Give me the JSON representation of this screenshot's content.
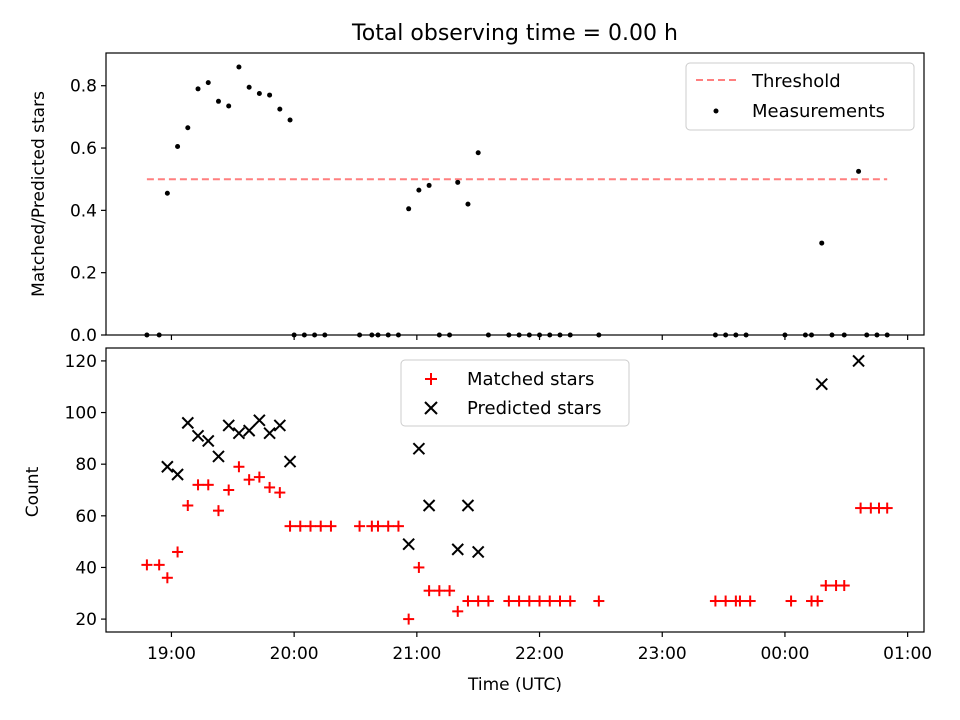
{
  "chart_data": [
    {
      "type": "scatter",
      "title": "Total observing time = 0.00 h",
      "xlabel": "",
      "ylabel": "Matched/Predicted stars",
      "xlim": [
        "18:28",
        "01:08"
      ],
      "ylim": [
        0,
        0.905
      ],
      "x_ticks": [
        "19:00",
        "20:00",
        "21:00",
        "22:00",
        "23:00",
        "00:00",
        "01:00"
      ],
      "y_ticks": [
        "0.0",
        "0.2",
        "0.4",
        "0.6",
        "0.8"
      ],
      "legend": {
        "position": "top-right",
        "entries": [
          "Threshold",
          "Measurements"
        ]
      },
      "threshold": {
        "name": "Threshold",
        "value": 0.5,
        "x_from": "18:48",
        "x_to": "00:50",
        "color": "#ff7f7f",
        "style": "dashed"
      },
      "series": [
        {
          "name": "Measurements",
          "color": "#000000",
          "marker": "dot",
          "points": [
            [
              "18:48",
              0.0
            ],
            [
              "18:54",
              0.0
            ],
            [
              "18:58",
              0.455
            ],
            [
              "19:03",
              0.605
            ],
            [
              "19:08",
              0.665
            ],
            [
              "19:13",
              0.79
            ],
            [
              "19:18",
              0.81
            ],
            [
              "19:23",
              0.75
            ],
            [
              "19:28",
              0.735
            ],
            [
              "19:33",
              0.86
            ],
            [
              "19:38",
              0.795
            ],
            [
              "19:43",
              0.775
            ],
            [
              "19:48",
              0.77
            ],
            [
              "19:53",
              0.725
            ],
            [
              "19:58",
              0.69
            ],
            [
              "20:00",
              0.0
            ],
            [
              "20:05",
              0.0
            ],
            [
              "20:10",
              0.0
            ],
            [
              "20:15",
              0.0
            ],
            [
              "20:32",
              0.0
            ],
            [
              "20:38",
              0.0
            ],
            [
              "20:41",
              0.0
            ],
            [
              "20:46",
              0.0
            ],
            [
              "20:51",
              0.0
            ],
            [
              "20:56",
              0.405
            ],
            [
              "21:01",
              0.465
            ],
            [
              "21:06",
              0.48
            ],
            [
              "21:11",
              0.0
            ],
            [
              "21:16",
              0.0
            ],
            [
              "21:20",
              0.49
            ],
            [
              "21:25",
              0.42
            ],
            [
              "21:30",
              0.585
            ],
            [
              "21:35",
              0.0
            ],
            [
              "21:45",
              0.0
            ],
            [
              "21:50",
              0.0
            ],
            [
              "21:55",
              0.0
            ],
            [
              "22:00",
              0.0
            ],
            [
              "22:05",
              0.0
            ],
            [
              "22:10",
              0.0
            ],
            [
              "22:15",
              0.0
            ],
            [
              "22:29",
              0.0
            ],
            [
              "23:26",
              0.0
            ],
            [
              "23:31",
              0.0
            ],
            [
              "23:36",
              0.0
            ],
            [
              "23:41",
              0.0
            ],
            [
              "00:00",
              0.0
            ],
            [
              "00:10",
              0.0
            ],
            [
              "00:13",
              0.0
            ],
            [
              "00:18",
              0.295
            ],
            [
              "00:23",
              0.0
            ],
            [
              "00:29",
              0.0
            ],
            [
              "00:36",
              0.525
            ],
            [
              "00:40",
              0.0
            ],
            [
              "00:45",
              0.0
            ],
            [
              "00:50",
              0.0
            ]
          ]
        }
      ]
    },
    {
      "type": "scatter",
      "title": "",
      "xlabel": "Time (UTC)",
      "ylabel": "Count",
      "xlim": [
        "18:28",
        "01:08"
      ],
      "ylim": [
        15,
        125
      ],
      "x_ticks": [
        "19:00",
        "20:00",
        "21:00",
        "22:00",
        "23:00",
        "00:00",
        "01:00"
      ],
      "y_ticks": [
        "20",
        "40",
        "60",
        "80",
        "100",
        "120"
      ],
      "legend": {
        "position": "top-center",
        "entries": [
          "Matched stars",
          "Predicted stars"
        ]
      },
      "series": [
        {
          "name": "Matched stars",
          "color": "#ff0000",
          "marker": "plus",
          "points": [
            [
              "18:48",
              41
            ],
            [
              "18:54",
              41
            ],
            [
              "18:58",
              36
            ],
            [
              "19:03",
              46
            ],
            [
              "19:08",
              64
            ],
            [
              "19:13",
              72
            ],
            [
              "19:18",
              72
            ],
            [
              "19:23",
              62
            ],
            [
              "19:28",
              70
            ],
            [
              "19:33",
              79
            ],
            [
              "19:38",
              74
            ],
            [
              "19:43",
              75
            ],
            [
              "19:48",
              71
            ],
            [
              "19:53",
              69
            ],
            [
              "19:58",
              56
            ],
            [
              "20:03",
              56
            ],
            [
              "20:08",
              56
            ],
            [
              "20:13",
              56
            ],
            [
              "20:18",
              56
            ],
            [
              "20:32",
              56
            ],
            [
              "20:38",
              56
            ],
            [
              "20:41",
              56
            ],
            [
              "20:46",
              56
            ],
            [
              "20:51",
              56
            ],
            [
              "20:56",
              20
            ],
            [
              "21:01",
              40
            ],
            [
              "21:06",
              31
            ],
            [
              "21:11",
              31
            ],
            [
              "21:16",
              31
            ],
            [
              "21:20",
              23
            ],
            [
              "21:25",
              27
            ],
            [
              "21:30",
              27
            ],
            [
              "21:35",
              27
            ],
            [
              "21:45",
              27
            ],
            [
              "21:50",
              27
            ],
            [
              "21:55",
              27
            ],
            [
              "22:00",
              27
            ],
            [
              "22:05",
              27
            ],
            [
              "22:10",
              27
            ],
            [
              "22:15",
              27
            ],
            [
              "22:29",
              27
            ],
            [
              "23:26",
              27
            ],
            [
              "23:31",
              27
            ],
            [
              "23:36",
              27
            ],
            [
              "23:38",
              27
            ],
            [
              "23:43",
              27
            ],
            [
              "00:03",
              27
            ],
            [
              "00:13",
              27
            ],
            [
              "00:16",
              27
            ],
            [
              "00:20",
              33
            ],
            [
              "00:25",
              33
            ],
            [
              "00:29",
              33
            ],
            [
              "00:37",
              63
            ],
            [
              "00:42",
              63
            ],
            [
              "00:46",
              63
            ],
            [
              "00:50",
              63
            ]
          ]
        },
        {
          "name": "Predicted stars",
          "color": "#000000",
          "marker": "x",
          "points": [
            [
              "18:58",
              79
            ],
            [
              "19:03",
              76
            ],
            [
              "19:08",
              96
            ],
            [
              "19:13",
              91
            ],
            [
              "19:18",
              89
            ],
            [
              "19:23",
              83
            ],
            [
              "19:28",
              95
            ],
            [
              "19:33",
              92
            ],
            [
              "19:38",
              93
            ],
            [
              "19:43",
              97
            ],
            [
              "19:48",
              92
            ],
            [
              "19:53",
              95
            ],
            [
              "19:58",
              81
            ],
            [
              "20:56",
              49
            ],
            [
              "21:01",
              86
            ],
            [
              "21:06",
              64
            ],
            [
              "21:20",
              47
            ],
            [
              "21:25",
              64
            ],
            [
              "21:30",
              46
            ],
            [
              "00:18",
              111
            ],
            [
              "00:36",
              120
            ]
          ]
        }
      ]
    }
  ]
}
